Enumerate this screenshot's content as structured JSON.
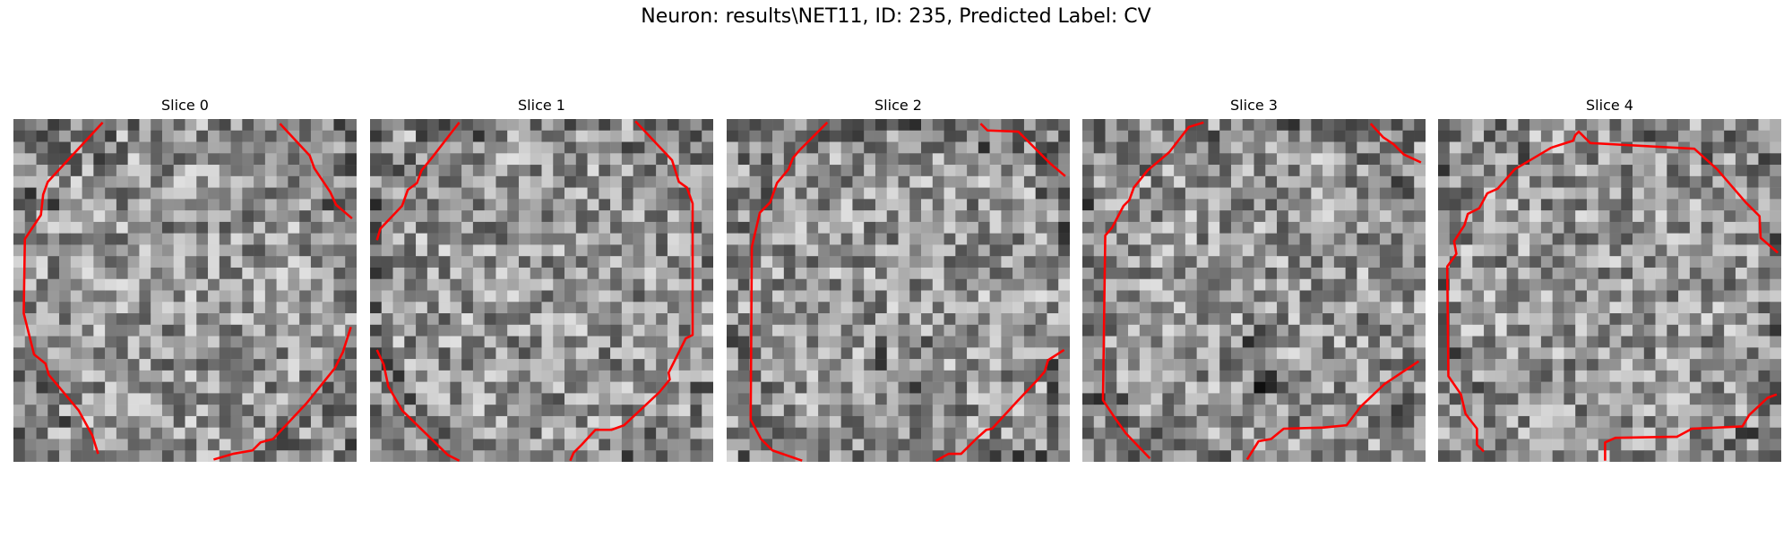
{
  "figure": {
    "title": "Neuron: results\\NET11, ID: 235, Predicted Label: CV"
  },
  "panels": [
    {
      "title": "Slice 0",
      "grid": 30,
      "seed": 11,
      "contour_color": "#ff0000"
    },
    {
      "title": "Slice 1",
      "grid": 30,
      "seed": 23,
      "contour_color": "#ff0000"
    },
    {
      "title": "Slice 2",
      "grid": 30,
      "seed": 37,
      "contour_color": "#ff0000"
    },
    {
      "title": "Slice 3",
      "grid": 30,
      "seed": 53,
      "contour_color": "#ff0000"
    },
    {
      "title": "Slice 4",
      "grid": 30,
      "seed": 71,
      "contour_color": "#ff0000"
    }
  ]
}
